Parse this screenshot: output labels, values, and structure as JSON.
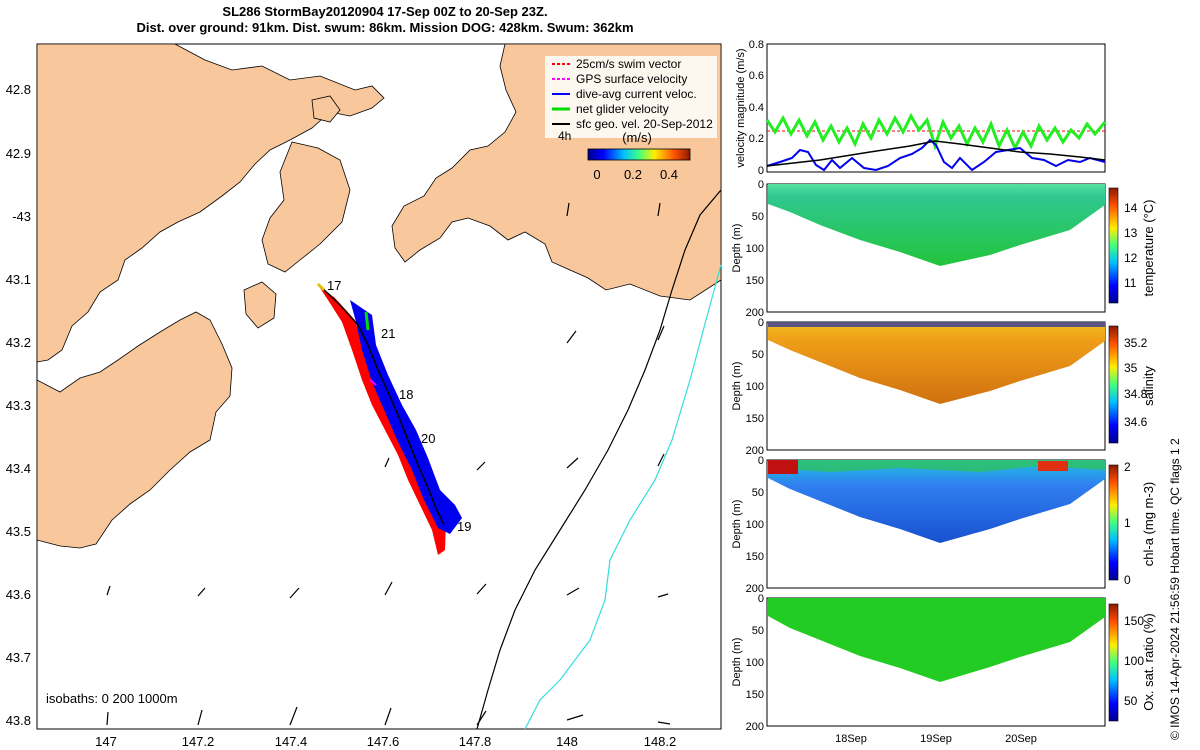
{
  "title": {
    "line1": "SL286 StormBay20120904 17-Sep 00Z to 20-Sep 23Z.",
    "line2": "Dist. over ground: 91km. Dist. swum: 86km. Mission DOG: 428km. Swum: 362km"
  },
  "map": {
    "lon_ticks": [
      "147",
      "147.2",
      "147.4",
      "147.6",
      "147.8",
      "148",
      "148.2"
    ],
    "lat_ticks": [
      "42.8",
      "42.9",
      "-43",
      "43.1",
      "43.2",
      "43.3",
      "43.4",
      "43.5",
      "43.6",
      "43.7",
      "43.8"
    ],
    "legend": [
      {
        "label": "25cm/s swim vector",
        "color": "#ff0000"
      },
      {
        "label": "GPS surface velocity",
        "color": "#ff00ff"
      },
      {
        "label": "dive-avg current veloc.",
        "color": "#0000ff"
      },
      {
        "label": "net glider velocity",
        "color": "#00dd00"
      },
      {
        "label": "sfc geo. vel. 20-Sep-2012",
        "color": "#000000"
      }
    ],
    "legend_extra": "4h",
    "colorbar": {
      "unit": "(m/s)",
      "ticks": [
        "0",
        "0.2",
        "0.4"
      ]
    },
    "day_labels": [
      "17",
      "21",
      "18",
      "20",
      "19"
    ],
    "isobath_label": "isobaths: 0   200  1000m",
    "land_color": "#f9c79c",
    "isobath_colors": {
      "200m": "#000000",
      "1000m": "#33dddd"
    }
  },
  "velocity_panel": {
    "ylabel": "velocity magnitude (m/s)",
    "yticks": [
      "0",
      "0.2",
      "0.4",
      "0.6",
      "0.8"
    ]
  },
  "sections": [
    {
      "label": "temperature (°C)",
      "cticks": [
        "11",
        "12",
        "13",
        "14"
      ]
    },
    {
      "label": "salinity",
      "cticks": [
        "34.6",
        "34.8",
        "35",
        "35.2"
      ]
    },
    {
      "label": "chl-a (mg m-3)",
      "cticks": [
        "0",
        "1",
        "2"
      ]
    },
    {
      "label": "Ox. sat. ratio (%)",
      "cticks": [
        "50",
        "100",
        "150"
      ]
    }
  ],
  "depth_label": "Depth (m)",
  "depth_ticks": [
    "0",
    "50",
    "100",
    "150",
    "200"
  ],
  "time_ticks": [
    "18Sep",
    "19Sep",
    "20Sep"
  ],
  "credit": "© IMOS 14-Apr-2024 21:56:59 Hobart time. QC flags 1  2"
}
